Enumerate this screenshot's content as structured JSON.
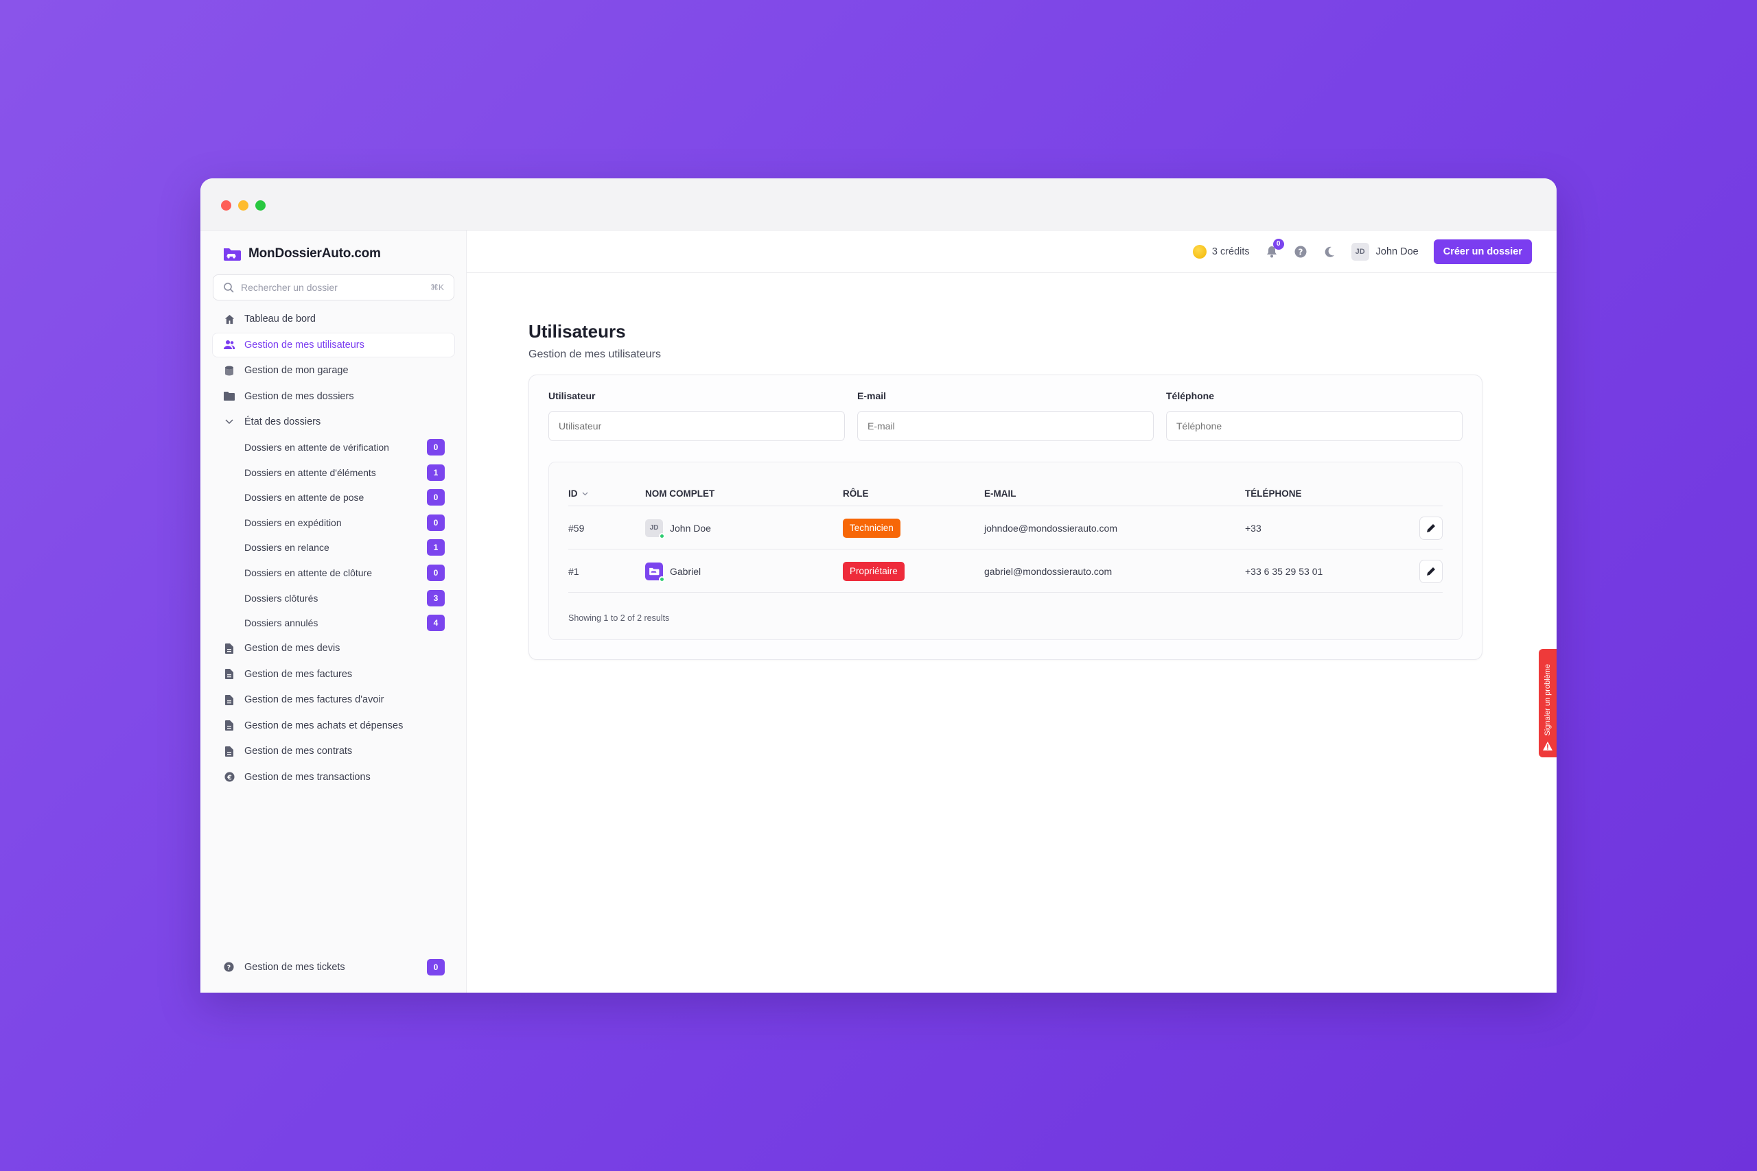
{
  "brand": {
    "name": "MonDossierAuto.com",
    "icon": "folder-car-icon",
    "color": "#7b3df0"
  },
  "search": {
    "placeholder": "Rechercher un dossier",
    "shortcut": "⌘K"
  },
  "sidebar": {
    "items": [
      {
        "label": "Tableau de bord",
        "icon": "home-icon"
      },
      {
        "label": "Gestion de mes utilisateurs",
        "icon": "users-icon",
        "active": true
      },
      {
        "label": "Gestion de mon garage",
        "icon": "database-icon"
      },
      {
        "label": "Gestion de mes dossiers",
        "icon": "folder-icon"
      },
      {
        "label": "État des dossiers",
        "icon": "chevron-down-icon"
      }
    ],
    "sub_items": [
      {
        "label": "Dossiers en attente de vérification",
        "count": "0"
      },
      {
        "label": "Dossiers en attente d'éléments",
        "count": "1"
      },
      {
        "label": "Dossiers en attente de pose",
        "count": "0"
      },
      {
        "label": "Dossiers en expédition",
        "count": "0"
      },
      {
        "label": "Dossiers en relance",
        "count": "1"
      },
      {
        "label": "Dossiers en attente de clôture",
        "count": "0"
      },
      {
        "label": "Dossiers clôturés",
        "count": "3"
      },
      {
        "label": "Dossiers annulés",
        "count": "4"
      }
    ],
    "docs": [
      {
        "label": "Gestion de mes devis",
        "icon": "file-icon"
      },
      {
        "label": "Gestion de mes factures",
        "icon": "file-icon"
      },
      {
        "label": "Gestion de mes factures d'avoir",
        "icon": "file-icon"
      },
      {
        "label": "Gestion de mes achats et dépenses",
        "icon": "file-icon"
      },
      {
        "label": "Gestion de mes contrats",
        "icon": "file-icon"
      },
      {
        "label": "Gestion de mes transactions",
        "icon": "euro-icon"
      }
    ],
    "tickets": {
      "label": "Gestion de mes tickets",
      "count": "0",
      "icon": "help-circle-icon"
    }
  },
  "topbar": {
    "credits": "3 crédits",
    "notifications_count": "0",
    "user_initials": "JD",
    "user_name": "John Doe",
    "cta_label": "Créer un dossier"
  },
  "page": {
    "title": "Utilisateurs",
    "subtitle": "Gestion de mes utilisateurs"
  },
  "filters": [
    {
      "label": "Utilisateur",
      "placeholder": "Utilisateur"
    },
    {
      "label": "E-mail",
      "placeholder": "E-mail"
    },
    {
      "label": "Téléphone",
      "placeholder": "Téléphone"
    }
  ],
  "table": {
    "headers": {
      "id": "ID",
      "name": "NOM COMPLET",
      "role": "RÔLE",
      "email": "E-MAIL",
      "phone": "TÉLÉPHONE"
    },
    "rows": [
      {
        "id": "#59",
        "avatar": "JD",
        "name": "John Doe",
        "role": "Technicien",
        "role_color": "#f76707",
        "email": "johndoe@mondossierauto.com",
        "phone": "+33"
      },
      {
        "id": "#1",
        "avatar": "",
        "name": "Gabriel",
        "role": "Propriétaire",
        "role_color": "#ee2b3b",
        "email": "gabriel@mondossierauto.com",
        "phone": "+33 6 35 29 53 01"
      }
    ],
    "footer": "Showing 1 to 2 of 2 results"
  },
  "report_tab": {
    "label": "Signaler un problème"
  }
}
